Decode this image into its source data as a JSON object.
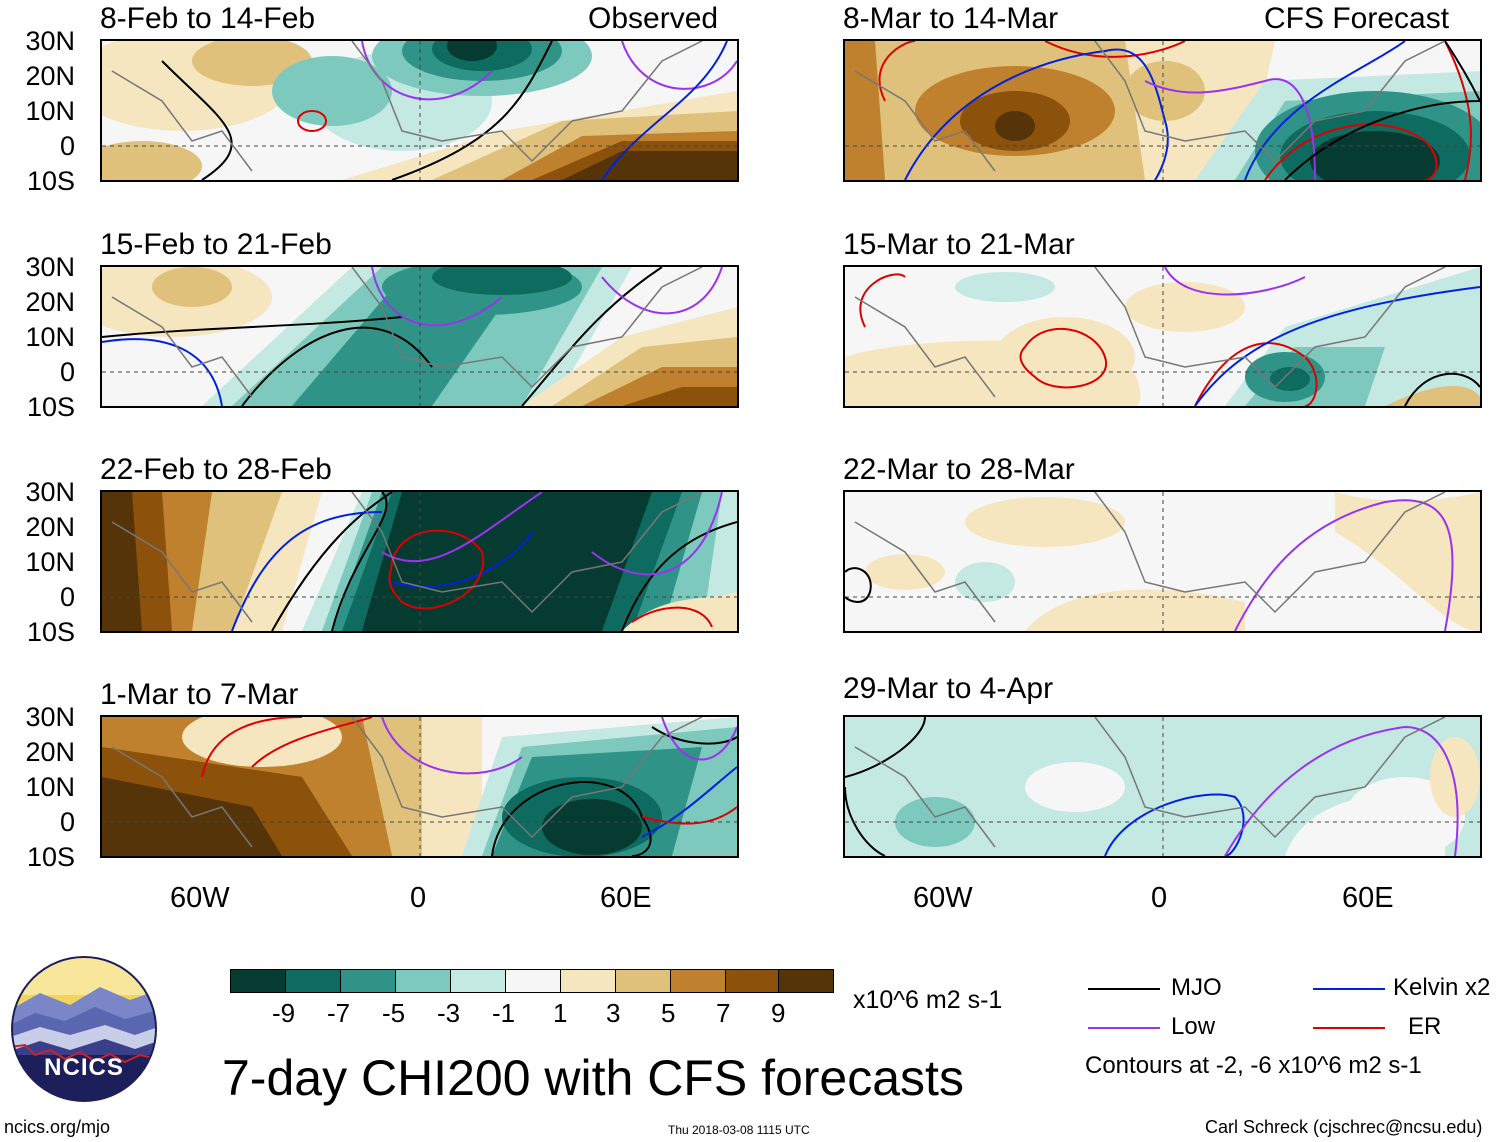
{
  "panels": [
    {
      "title": "8-Feb to 14-Feb",
      "tag": "Observed"
    },
    {
      "title": "15-Feb to 21-Feb",
      "tag": ""
    },
    {
      "title": "22-Feb to 28-Feb",
      "tag": ""
    },
    {
      "title": "1-Mar to 7-Mar",
      "tag": ""
    },
    {
      "title": "8-Mar to 14-Mar",
      "tag": "CFS Forecast"
    },
    {
      "title": "15-Mar to 21-Mar",
      "tag": ""
    },
    {
      "title": "22-Mar to 28-Mar",
      "tag": ""
    },
    {
      "title": "29-Mar to 4-Apr",
      "tag": ""
    }
  ],
  "lat_labels": [
    "30N",
    "20N",
    "10N",
    "0",
    "10S"
  ],
  "lon_labels": [
    "60W",
    "0",
    "60E"
  ],
  "colorbar": {
    "colors": [
      "#053b31",
      "#0e6b60",
      "#2f9487",
      "#7dc9bd",
      "#c4e8e2",
      "#f6f6f6",
      "#f6e6bf",
      "#dfc17b",
      "#bf812d",
      "#8c510a",
      "#553409"
    ],
    "labels": [
      "-9",
      "-7",
      "-5",
      "-3",
      "-1",
      "1",
      "3",
      "5",
      "7",
      "9"
    ],
    "units": "x10^6 m2 s-1"
  },
  "legend": {
    "items": [
      {
        "label": "MJO",
        "color": "#000000"
      },
      {
        "label": "Kelvin x2",
        "color": "#0022dd"
      },
      {
        "label": "Low",
        "color": "#9933ee"
      },
      {
        "label": "ER",
        "color": "#dd0000"
      }
    ],
    "note": "Contours at -2, -6 x10^6 m2 s-1"
  },
  "logo_text": "NCICS",
  "main_title": "7-day CHI200 with CFS forecasts",
  "footer": {
    "left": "ncics.org/mjo",
    "center": "Thu 2018-03-08 1115 UTC",
    "right": "Carl Schreck (cjschrec@ncsu.edu)"
  }
}
